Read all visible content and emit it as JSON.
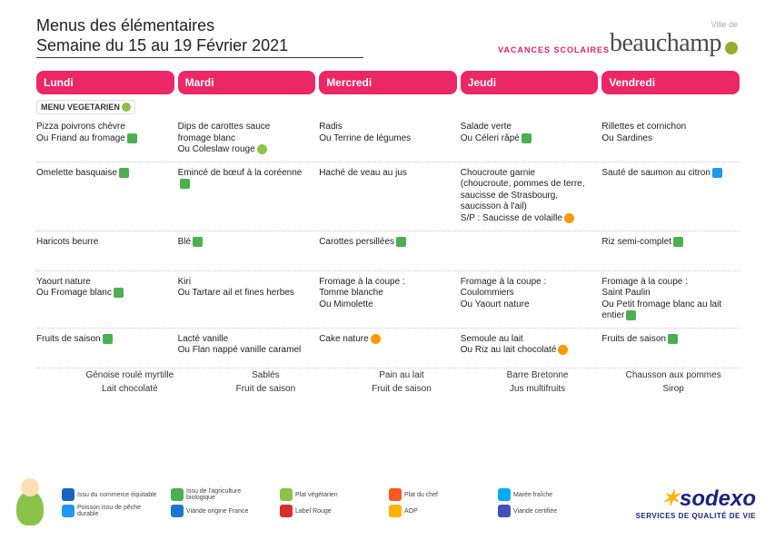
{
  "header": {
    "title": "Menus des élémentaires",
    "subtitle": "Semaine du 15 au 19 Février 2021",
    "vacation": "VACANCES SCOLAIRES",
    "ville_label": "Ville de",
    "city": "beauchamp"
  },
  "days": [
    "Lundi",
    "Mardi",
    "Mercredi",
    "Jeudi",
    "Vendredi"
  ],
  "veg_label": "MENU VEGETARIEN",
  "rows": [
    {
      "r": [
        "Pizza poivrons chèvre\nOu Friand au fromage",
        "Dips de carottes sauce fromage blanc\nOu Coleslaw rouge",
        "Radis\nOu Terrine de légumes",
        "Salade verte\nOu Céleri râpé",
        "Rillettes et cornichon\nOu Sardines"
      ]
    },
    {
      "r": [
        "Omelette basquaise",
        "Emincé de bœuf à la coréenne",
        "Haché de veau au jus",
        "Choucroute garnie\n(choucroute, pommes de terre, saucisse de Strasbourg, saucisson à l'ail)\nS/P : Saucisse de volaille",
        "Sauté de saumon au citron"
      ]
    },
    {
      "r": [
        "Haricots beurre",
        "Blé",
        "Carottes persillées",
        "",
        "Riz semi-complet"
      ]
    },
    {
      "r": [
        "Yaourt nature\nOu Fromage blanc",
        "Kiri\nOu Tartare ail et fines herbes",
        "Fromage à la coupe :\nTomme blanche\nOu Mimolette",
        "Fromage à la coupe :\nCoulommiers\nOu Yaourt nature",
        "Fromage à la coupe :\nSaint Paulin\nOu Petit fromage blanc au lait entier"
      ]
    },
    {
      "r": [
        "Fruits de saison",
        "Lacté vanille\nOu Flan nappé vanille caramel",
        "Cake nature",
        "Semoule au lait\nOu Riz au lait chocolaté",
        "Fruits de saison"
      ]
    }
  ],
  "snacks": [
    [
      "Génoise roulé myrtille",
      "Sablés",
      "Pain au lait",
      "Barre Bretonne",
      "Chausson aux pommes"
    ],
    [
      "Lait chocolaté",
      "Fruit de saison",
      "Fruit de saison",
      "Jus multifruits",
      "Sirop"
    ]
  ],
  "certs": [
    {
      "c": "#1565c0",
      "t": "Issu du commerce équitable"
    },
    {
      "c": "#4caf50",
      "t": "Issu de l'agriculture biologique"
    },
    {
      "c": "#8bc34a",
      "t": "Plat végétarien"
    },
    {
      "c": "#ff5722",
      "t": "Plat du chef"
    },
    {
      "c": "#03a9f4",
      "t": "Marée fraîche"
    },
    {
      "c": "#2196f3",
      "t": "Poisson issu de pêche durable"
    },
    {
      "c": "#1976d2",
      "t": "Viande origine France"
    },
    {
      "c": "#d32f2f",
      "t": "Label Rouge"
    },
    {
      "c": "#ffb300",
      "t": "AOP"
    },
    {
      "c": "#3f51b5",
      "t": "Viande certifiée"
    }
  ],
  "sodexo": {
    "brand": "sodexo",
    "tag": "SERVICES DE QUALITÉ DE VIE"
  },
  "colors": {
    "pink": "#ec2765",
    "olive": "#9aab2e",
    "navy": "#1a237e"
  }
}
